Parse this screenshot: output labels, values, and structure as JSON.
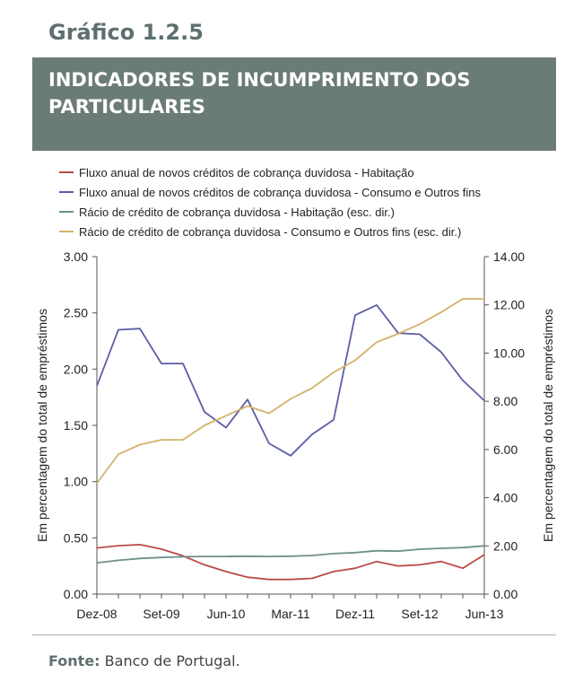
{
  "figure_number": "Gráfico 1.2.5",
  "title": "INDICADORES DE INCUMPRIMENTO DOS PARTICULARES",
  "source_label": "Fonte:",
  "source_text": "Banco de Portugal.",
  "chart_data": {
    "type": "line",
    "x_labels": [
      "Dez-08",
      "Set-09",
      "Jun-10",
      "Mar-11",
      "Dez-11",
      "Set-12",
      "Jun-13"
    ],
    "x_periods": [
      "Dez-08",
      "Mar-09",
      "Jun-09",
      "Set-09",
      "Dez-09",
      "Mar-10",
      "Jun-10",
      "Set-10",
      "Dez-10",
      "Mar-11",
      "Jun-11",
      "Set-11",
      "Dez-11",
      "Mar-12",
      "Jun-12",
      "Set-12",
      "Dez-12",
      "Mar-13",
      "Jun-13"
    ],
    "y_left": {
      "label": "Em percentagem do total de empréstimos",
      "min": 0,
      "max": 3.0,
      "ticks": [
        "0.00",
        "0.50",
        "1.00",
        "1.50",
        "2.00",
        "2.50",
        "3.00"
      ]
    },
    "y_right": {
      "label": "Em percentagem do total de empréstimos",
      "min": 0,
      "max": 14.0,
      "ticks": [
        "0.00",
        "2.00",
        "4.00",
        "6.00",
        "8.00",
        "10.00",
        "12.00",
        "14.00"
      ]
    },
    "grid": false,
    "legend_position": "top",
    "series": [
      {
        "name": "Fluxo anual de novos créditos de cobrança duvidosa - Habitação",
        "axis": "left",
        "color": "#b94a48",
        "values": [
          0.41,
          0.43,
          0.44,
          0.4,
          0.34,
          0.26,
          0.2,
          0.15,
          0.13,
          0.13,
          0.14,
          0.2,
          0.23,
          0.29,
          0.25,
          0.26,
          0.29,
          0.23,
          0.35
        ]
      },
      {
        "name": "Fluxo anual de novos créditos de cobrança duvidosa - Consumo e Outros fins",
        "axis": "left",
        "color": "#5b5ea6",
        "values": [
          1.85,
          2.35,
          2.36,
          2.05,
          2.05,
          1.62,
          1.48,
          1.73,
          1.34,
          1.23,
          1.42,
          1.55,
          2.48,
          2.57,
          2.32,
          2.31,
          2.15,
          1.9,
          1.72
        ]
      },
      {
        "name": "Rácio de crédito de cobrança duvidosa - Habitação (esc. dir.)",
        "axis": "right",
        "color": "#6e9089",
        "values": [
          1.3,
          1.4,
          1.48,
          1.52,
          1.55,
          1.56,
          1.56,
          1.57,
          1.56,
          1.57,
          1.6,
          1.68,
          1.72,
          1.8,
          1.78,
          1.86,
          1.9,
          1.93,
          2.0
        ]
      },
      {
        "name": "Rácio de crédito de cobrança duvidosa - Consumo e Outros fins (esc. dir.)",
        "axis": "right",
        "color": "#d1b36a",
        "values": [
          4.6,
          5.8,
          6.2,
          6.4,
          6.4,
          7.0,
          7.4,
          7.8,
          7.5,
          8.1,
          8.55,
          9.2,
          9.7,
          10.45,
          10.8,
          11.2,
          11.7,
          12.25,
          12.25
        ]
      }
    ]
  }
}
